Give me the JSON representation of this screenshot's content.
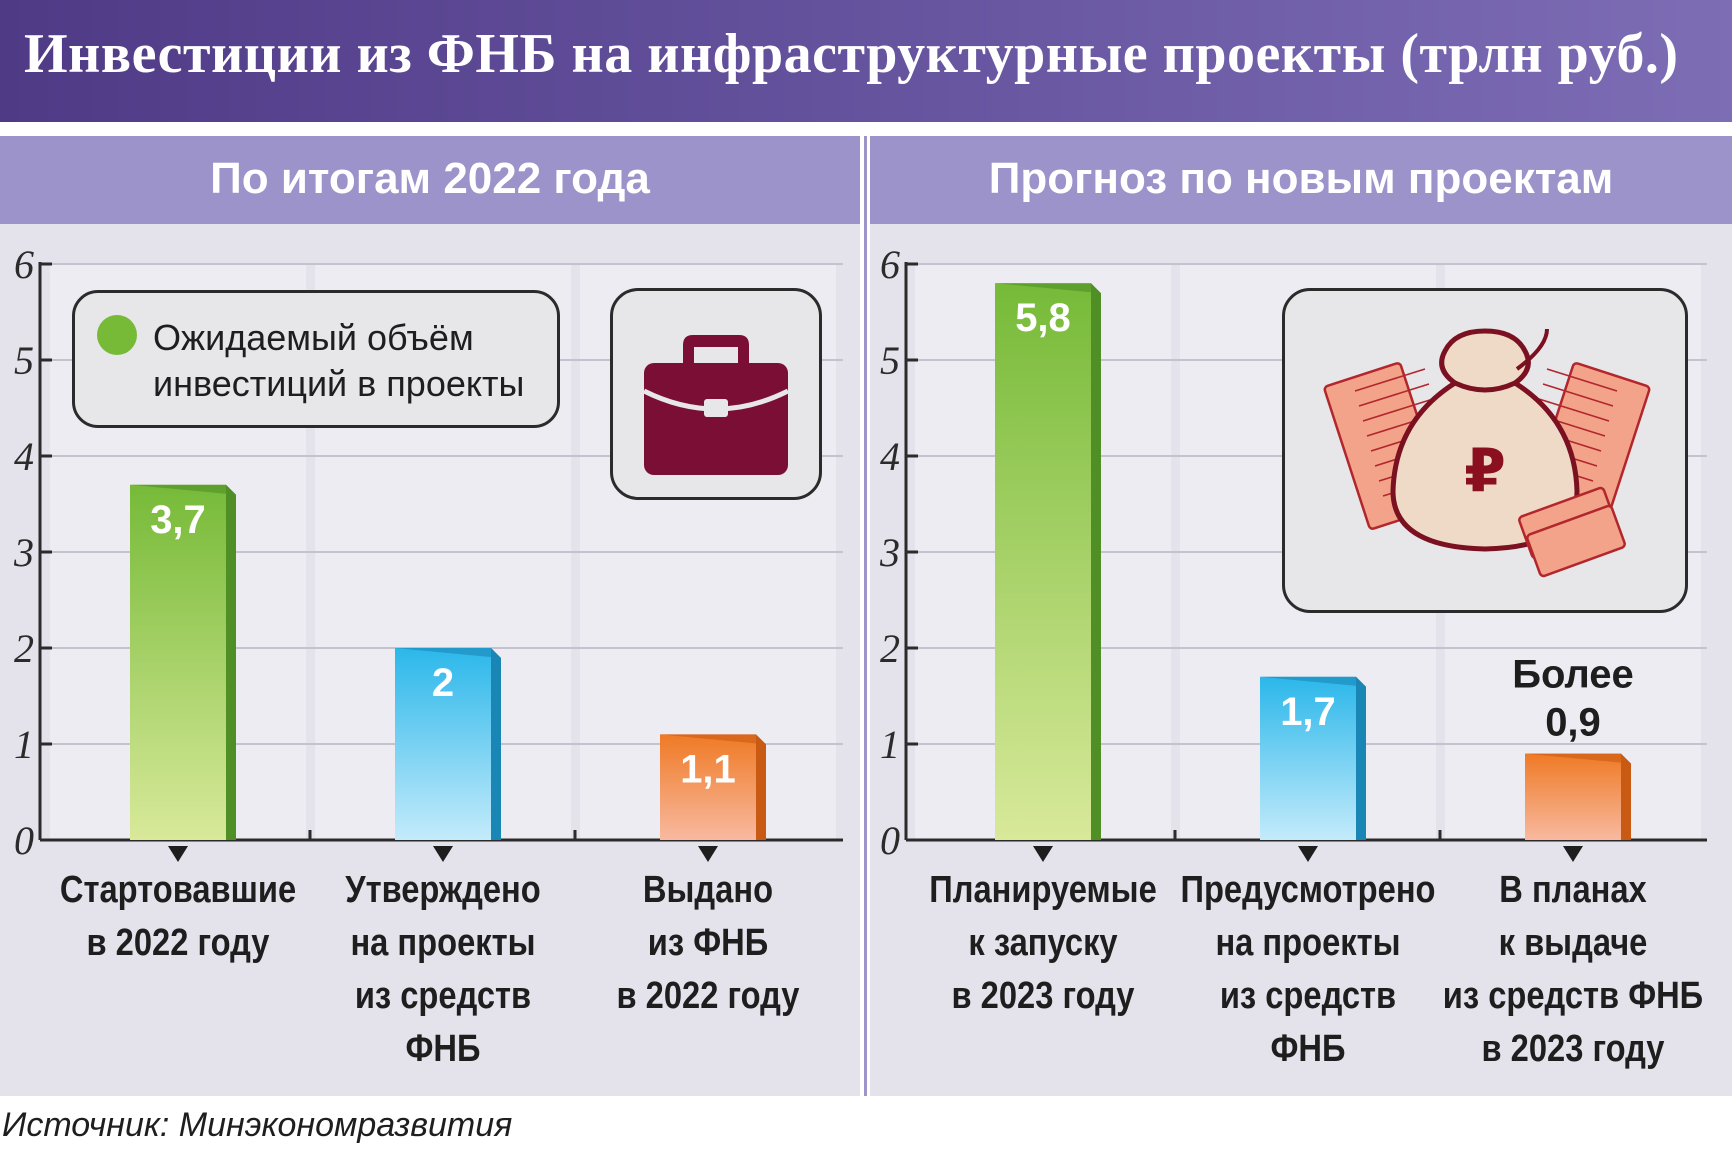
{
  "title": "Инвестиции из ФНБ на инфраструктурные проекты (трлн руб.)",
  "source": "Источник: Минэкономразвития",
  "legend": {
    "label": "Ожидаемый объём инвестиций в проекты",
    "color": "#76ba38"
  },
  "icons": {
    "left_panel": "briefcase-icon",
    "right_panel": "ruble-money-bag-icon"
  },
  "colors": {
    "green": "#76ba38",
    "blue": "#2bb7ea",
    "orange": "#ef7a25",
    "header": "#9b93c9",
    "title_bar": "#5a4791"
  },
  "chart_data": [
    {
      "type": "bar",
      "title": "По итогам 2022 года",
      "ylim": [
        0,
        6
      ],
      "yticks": [
        "0",
        "1",
        "2",
        "3",
        "4",
        "5",
        "6"
      ],
      "categories": [
        "Стартовавшие\nв 2022 году",
        "Утверждено\nна проекты\nиз средств\nФНБ",
        "Выдано\nиз ФНБ\nв 2022 году"
      ],
      "values": [
        3.7,
        2,
        1.1
      ],
      "data_labels": [
        "3,7",
        "2",
        "1,1"
      ],
      "colors": [
        "green",
        "blue",
        "orange"
      ]
    },
    {
      "type": "bar",
      "title": "Прогноз по новым проектам",
      "ylim": [
        0,
        6
      ],
      "yticks": [
        "0",
        "1",
        "2",
        "3",
        "4",
        "5",
        "6"
      ],
      "categories": [
        "Планируемые\nк запуску\nв 2023 году",
        "Предусмотрено\nна проекты\nиз средств\nФНБ",
        "В планах\nк выдаче\nиз средств ФНБ\nв 2023 году"
      ],
      "values": [
        5.8,
        1.7,
        0.9
      ],
      "data_labels": [
        "5,8",
        "1,7",
        "Более\n0,9"
      ],
      "colors": [
        "green",
        "blue",
        "orange"
      ]
    }
  ]
}
